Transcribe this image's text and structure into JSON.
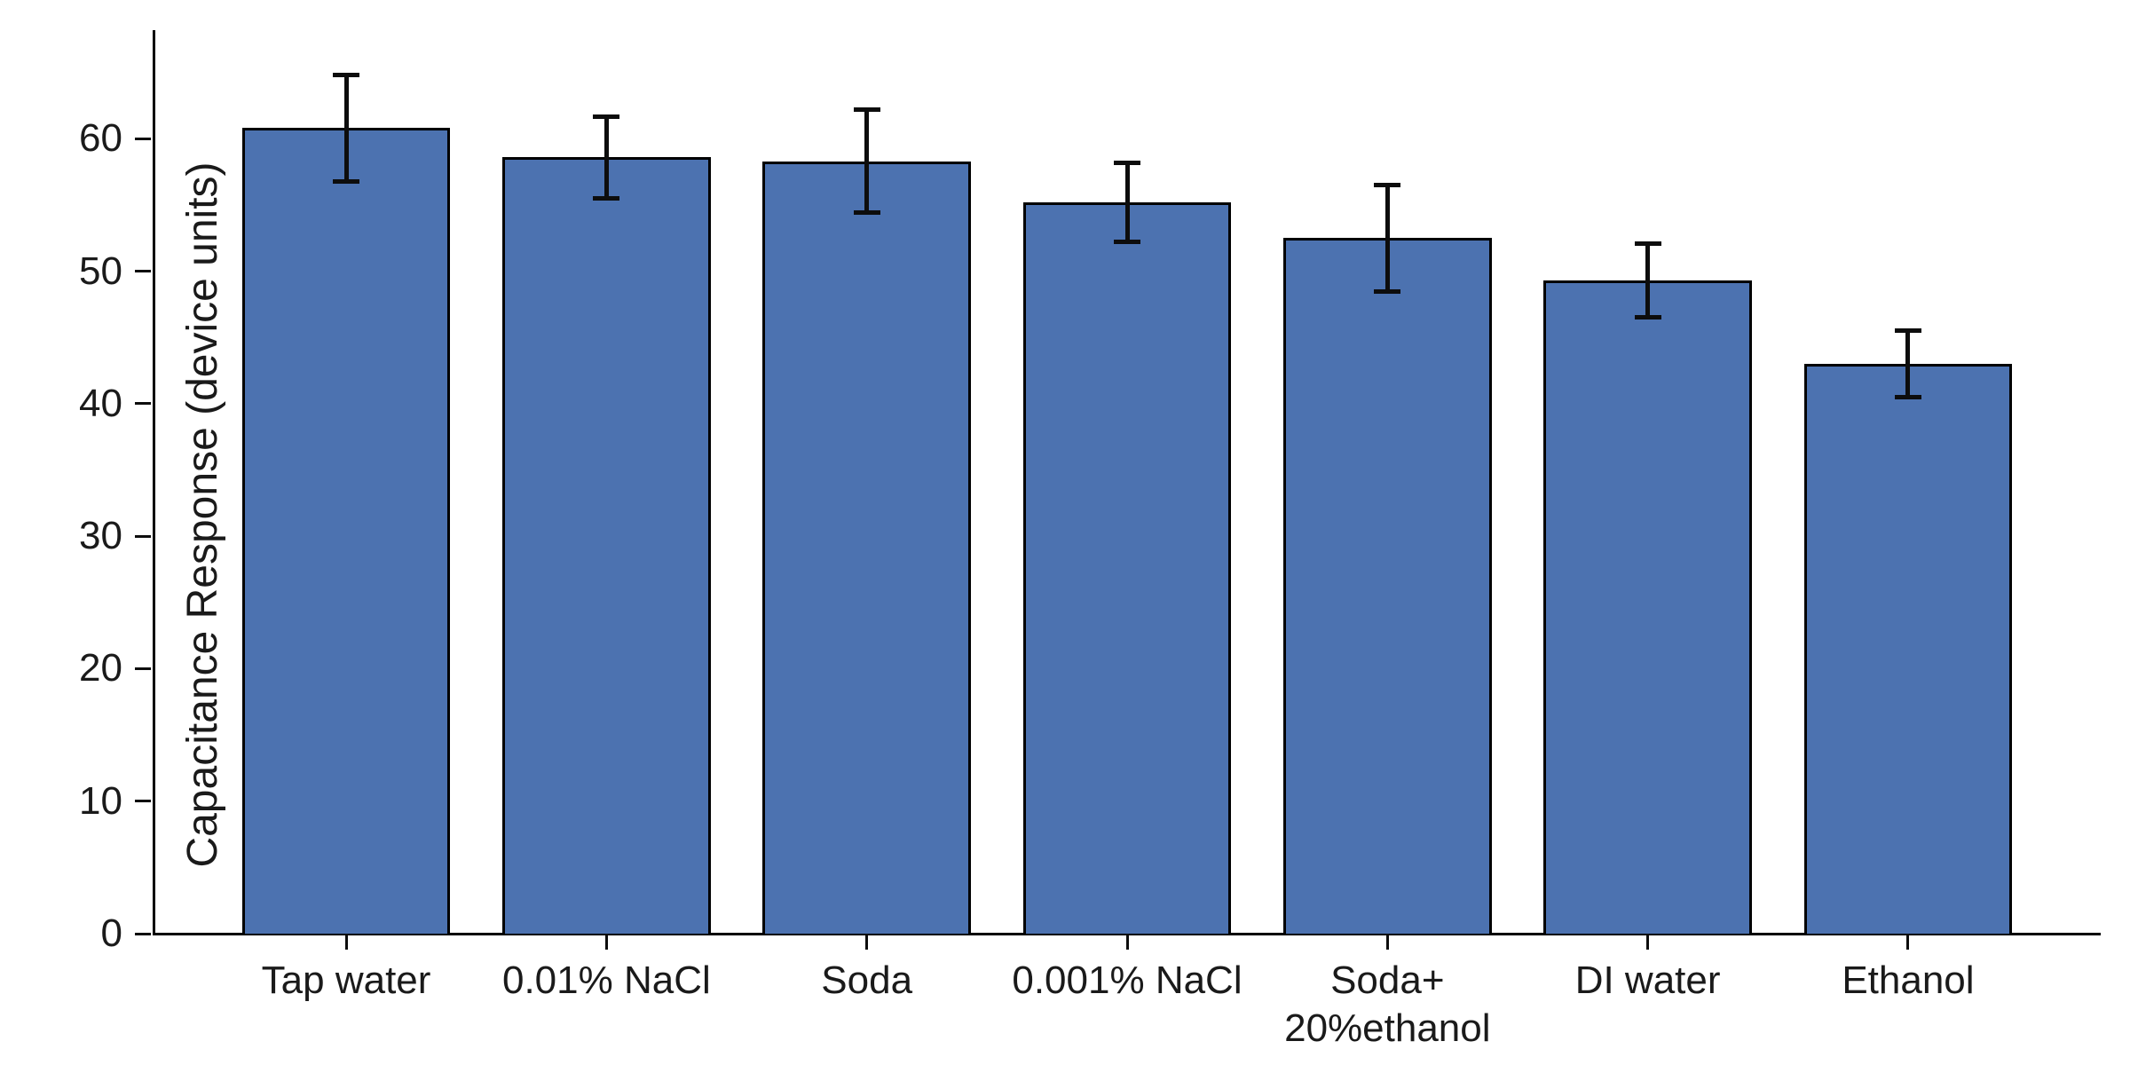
{
  "chart_data": {
    "type": "bar",
    "title": "",
    "xlabel": "",
    "ylabel": "Capacitance Response (device units)",
    "categories": [
      "Tap water",
      "0.01% NaCl",
      "Soda",
      "0.001% NaCl",
      "Soda+\n20%ethanol",
      "DI water",
      "Ethanol"
    ],
    "values": [
      60.8,
      58.6,
      58.3,
      55.2,
      52.5,
      49.3,
      43.0
    ],
    "errors": [
      4.0,
      3.1,
      3.9,
      3.0,
      4.0,
      2.8,
      2.5
    ],
    "yticks": [
      0,
      10,
      20,
      30,
      40,
      50,
      60
    ],
    "ylim": [
      0,
      68.2
    ],
    "xlim": [
      -0.74,
      6.74
    ],
    "bar_width": 0.8,
    "bar_color": "#4C72B0",
    "bar_edge_color": "#000000",
    "error_color": "#0d0d0d",
    "grid": false,
    "legend": null
  }
}
